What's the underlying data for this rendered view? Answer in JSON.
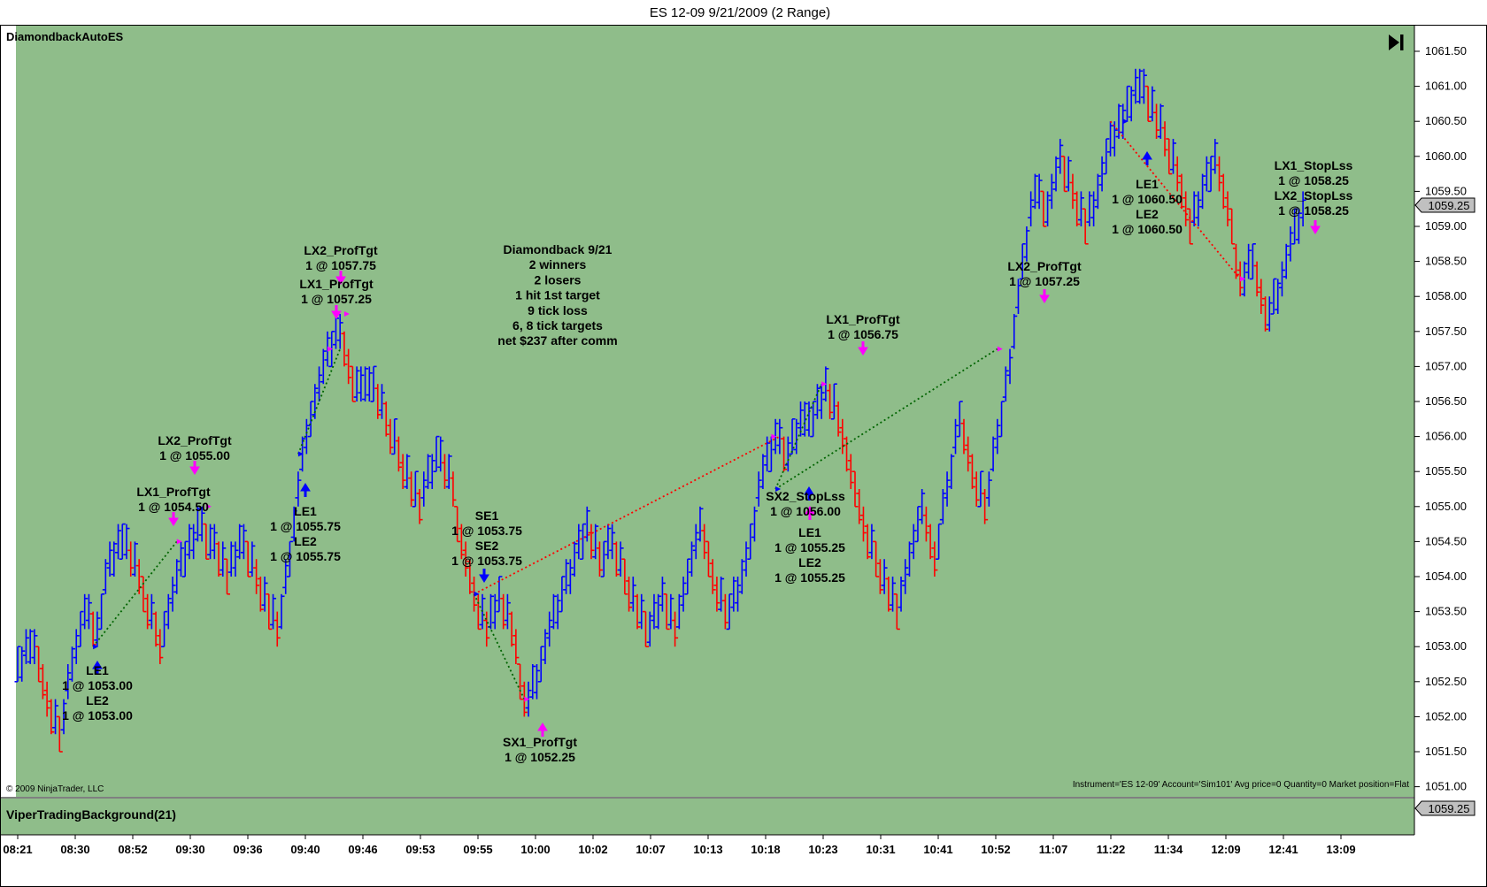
{
  "window": {
    "title": "ES 12-09  9/21/2009 (2 Range)"
  },
  "panel": {
    "strategy_label": "DiamondbackAutoES",
    "copyright": "© 2009 NinjaTrader, LLC",
    "status_text": "Instrument='ES 12-09' Account='Sim101' Avg price=0 Quantity=0 Market position=Flat",
    "indicator_label": "ViperTradingBackground(21)",
    "indicator_value": "1059.25",
    "last_price": "1059.25",
    "end_icon": "skip-to-end-icon"
  },
  "colors": {
    "background": "#8fbd8a",
    "up_bar": "#0000ff",
    "down_bar": "#ff0000",
    "marker": "#ff00ff",
    "win_line": "#006400",
    "loss_line": "#ff0000",
    "price_box": "#c0c0c0"
  },
  "chart_data": {
    "type": "bar",
    "style": "range bars (2 ticks), up bars blue, down bars red",
    "grid": false,
    "y_axis": {
      "ylim": [
        1050.75,
        1061.75
      ],
      "ticks": [
        "1051.00",
        "1051.50",
        "1052.00",
        "1052.50",
        "1053.00",
        "1053.50",
        "1054.00",
        "1054.50",
        "1055.00",
        "1055.50",
        "1056.00",
        "1056.50",
        "1057.00",
        "1057.50",
        "1058.00",
        "1058.50",
        "1059.00",
        "1059.50",
        "1060.00",
        "1060.50",
        "1061.00",
        "1061.50"
      ]
    },
    "x_axis": {
      "ticks": [
        "08:21",
        "08:30",
        "08:52",
        "09:30",
        "09:36",
        "09:40",
        "09:46",
        "09:53",
        "09:55",
        "10:00",
        "10:02",
        "10:07",
        "10:13",
        "10:18",
        "10:23",
        "10:31",
        "10:41",
        "10:52",
        "11:07",
        "11:22",
        "11:34",
        "12:09",
        "12:41",
        "13:09"
      ]
    },
    "price_path": [
      {
        "i": 0,
        "p": 1052.75
      },
      {
        "i": 4,
        "p": 1053.0
      },
      {
        "i": 7,
        "p": 1052.25
      },
      {
        "i": 10,
        "p": 1051.75
      },
      {
        "i": 13,
        "p": 1052.75
      },
      {
        "i": 16,
        "p": 1053.5
      },
      {
        "i": 19,
        "p": 1053.25
      },
      {
        "i": 22,
        "p": 1054.25
      },
      {
        "i": 26,
        "p": 1054.5
      },
      {
        "i": 30,
        "p": 1053.75
      },
      {
        "i": 34,
        "p": 1053.0
      },
      {
        "i": 38,
        "p": 1054.0
      },
      {
        "i": 43,
        "p": 1054.75
      },
      {
        "i": 46,
        "p": 1054.5
      },
      {
        "i": 50,
        "p": 1054.0
      },
      {
        "i": 54,
        "p": 1054.5
      },
      {
        "i": 58,
        "p": 1053.75
      },
      {
        "i": 62,
        "p": 1053.25
      },
      {
        "i": 65,
        "p": 1054.25
      },
      {
        "i": 68,
        "p": 1055.75
      },
      {
        "i": 71,
        "p": 1056.5
      },
      {
        "i": 74,
        "p": 1057.25
      },
      {
        "i": 77,
        "p": 1057.5
      },
      {
        "i": 80,
        "p": 1056.75
      },
      {
        "i": 84,
        "p": 1056.75
      },
      {
        "i": 88,
        "p": 1056.25
      },
      {
        "i": 92,
        "p": 1055.5
      },
      {
        "i": 96,
        "p": 1055.0
      },
      {
        "i": 100,
        "p": 1055.75
      },
      {
        "i": 103,
        "p": 1055.5
      },
      {
        "i": 106,
        "p": 1054.5
      },
      {
        "i": 109,
        "p": 1053.75
      },
      {
        "i": 112,
        "p": 1053.25
      },
      {
        "i": 115,
        "p": 1053.75
      },
      {
        "i": 118,
        "p": 1053.25
      },
      {
        "i": 121,
        "p": 1052.25
      },
      {
        "i": 124,
        "p": 1052.5
      },
      {
        "i": 127,
        "p": 1053.25
      },
      {
        "i": 130,
        "p": 1053.75
      },
      {
        "i": 133,
        "p": 1054.25
      },
      {
        "i": 136,
        "p": 1054.75
      },
      {
        "i": 139,
        "p": 1054.25
      },
      {
        "i": 142,
        "p": 1054.5
      },
      {
        "i": 145,
        "p": 1054.0
      },
      {
        "i": 148,
        "p": 1053.5
      },
      {
        "i": 151,
        "p": 1053.25
      },
      {
        "i": 154,
        "p": 1053.75
      },
      {
        "i": 157,
        "p": 1053.25
      },
      {
        "i": 160,
        "p": 1054.0
      },
      {
        "i": 163,
        "p": 1054.75
      },
      {
        "i": 166,
        "p": 1054.0
      },
      {
        "i": 169,
        "p": 1053.5
      },
      {
        "i": 172,
        "p": 1053.75
      },
      {
        "i": 175,
        "p": 1054.5
      },
      {
        "i": 178,
        "p": 1055.5
      },
      {
        "i": 181,
        "p": 1056.0
      },
      {
        "i": 184,
        "p": 1055.75
      },
      {
        "i": 187,
        "p": 1056.25
      },
      {
        "i": 190,
        "p": 1056.25
      },
      {
        "i": 193,
        "p": 1056.75
      },
      {
        "i": 196,
        "p": 1056.25
      },
      {
        "i": 199,
        "p": 1055.5
      },
      {
        "i": 202,
        "p": 1054.75
      },
      {
        "i": 205,
        "p": 1054.25
      },
      {
        "i": 208,
        "p": 1053.75
      },
      {
        "i": 210,
        "p": 1053.5
      },
      {
        "i": 213,
        "p": 1054.25
      },
      {
        "i": 216,
        "p": 1055.0
      },
      {
        "i": 219,
        "p": 1054.25
      },
      {
        "i": 222,
        "p": 1055.25
      },
      {
        "i": 225,
        "p": 1056.25
      },
      {
        "i": 228,
        "p": 1055.5
      },
      {
        "i": 231,
        "p": 1055.0
      },
      {
        "i": 234,
        "p": 1056.0
      },
      {
        "i": 237,
        "p": 1057.0
      },
      {
        "i": 240,
        "p": 1058.5
      },
      {
        "i": 243,
        "p": 1059.5
      },
      {
        "i": 246,
        "p": 1059.25
      },
      {
        "i": 249,
        "p": 1060.0
      },
      {
        "i": 252,
        "p": 1059.5
      },
      {
        "i": 255,
        "p": 1059.0
      },
      {
        "i": 258,
        "p": 1059.5
      },
      {
        "i": 261,
        "p": 1060.25
      },
      {
        "i": 264,
        "p": 1060.5
      },
      {
        "i": 268,
        "p": 1061.0
      },
      {
        "i": 271,
        "p": 1060.75
      },
      {
        "i": 274,
        "p": 1060.25
      },
      {
        "i": 277,
        "p": 1059.75
      },
      {
        "i": 280,
        "p": 1059.0
      },
      {
        "i": 283,
        "p": 1059.5
      },
      {
        "i": 286,
        "p": 1060.0
      },
      {
        "i": 289,
        "p": 1059.25
      },
      {
        "i": 292,
        "p": 1058.25
      },
      {
        "i": 295,
        "p": 1058.5
      },
      {
        "i": 298,
        "p": 1057.75
      },
      {
        "i": 301,
        "p": 1058.0
      },
      {
        "i": 304,
        "p": 1058.75
      },
      {
        "i": 307,
        "p": 1059.25
      }
    ],
    "trades": [
      {
        "entry_time": "08:30",
        "entry_price": 1053.0,
        "exit_price": 1054.5,
        "result": "win"
      },
      {
        "entry_time": "09:40",
        "entry_price": 1055.75,
        "exit_price": 1057.25,
        "result": "win"
      },
      {
        "entry_time": "09:55",
        "entry_price": 1053.75,
        "exit_price": 1052.25,
        "result": "win"
      },
      {
        "entry_time": "09:55",
        "entry_price": 1053.75,
        "exit_price": 1056.0,
        "result": "loss"
      },
      {
        "entry_time": "10:23",
        "entry_price": 1055.25,
        "exit_price": 1056.75,
        "result": "win"
      },
      {
        "entry_time": "10:23",
        "entry_price": 1055.25,
        "exit_price": 1057.25,
        "result": "win"
      },
      {
        "entry_time": "11:34",
        "entry_price": 1060.5,
        "exit_price": 1058.25,
        "result": "loss"
      }
    ],
    "signals": [
      {
        "lines": [
          "LE1",
          "1 @ 1053.00",
          "LE2",
          "1 @ 1053.00"
        ],
        "kind": "long-entry",
        "price": 1053.0
      },
      {
        "lines": [
          "LX1_ProfTgt",
          "1 @ 1054.50"
        ],
        "kind": "long-exit",
        "price": 1054.5
      },
      {
        "lines": [
          "LX2_ProfTgt",
          "1 @ 1055.00"
        ],
        "kind": "long-exit",
        "price": 1055.0
      },
      {
        "lines": [
          "LE1",
          "1 @ 1055.75",
          "LE2",
          "1 @ 1055.75"
        ],
        "kind": "long-entry",
        "price": 1055.75
      },
      {
        "lines": [
          "LX2_ProfTgt",
          "1 @ 1057.75"
        ],
        "kind": "long-exit",
        "price": 1057.75
      },
      {
        "lines": [
          "LX1_ProfTgt",
          "1 @ 1057.25"
        ],
        "kind": "long-exit",
        "price": 1057.25
      },
      {
        "lines": [
          "SE1",
          "1 @ 1053.75",
          "SE2",
          "1 @ 1053.75"
        ],
        "kind": "short-entry",
        "price": 1053.75
      },
      {
        "lines": [
          "SX1_ProfTgt",
          "1 @ 1052.25"
        ],
        "kind": "short-exit",
        "price": 1052.25
      },
      {
        "lines": [
          "SX2_StopLss",
          "1 @ 1056.00"
        ],
        "kind": "short-exit",
        "price": 1056.0
      },
      {
        "lines": [
          "LE1",
          "1 @ 1055.25",
          "LE2",
          "1 @ 1055.25"
        ],
        "kind": "long-entry",
        "price": 1055.25
      },
      {
        "lines": [
          "LX1_ProfTgt",
          "1 @ 1056.75"
        ],
        "kind": "long-exit",
        "price": 1056.75
      },
      {
        "lines": [
          "LX2_ProfTgt",
          "1 @ 1057.25"
        ],
        "kind": "long-exit",
        "price": 1057.25
      },
      {
        "lines": [
          "LE1",
          "1 @ 1060.50",
          "LE2",
          "1 @ 1060.50"
        ],
        "kind": "long-entry",
        "price": 1060.5
      },
      {
        "lines": [
          "LX1_StopLss",
          "1 @ 1058.25",
          "LX2_StopLss",
          "1 @ 1058.25"
        ],
        "kind": "long-exit",
        "price": 1058.25
      }
    ],
    "annotation": [
      "Diamondback 9/21",
      "2 winners",
      "2 losers",
      "1 hit 1st target",
      "9 tick loss",
      "6, 8 tick targets",
      "net $237 after comm"
    ]
  }
}
